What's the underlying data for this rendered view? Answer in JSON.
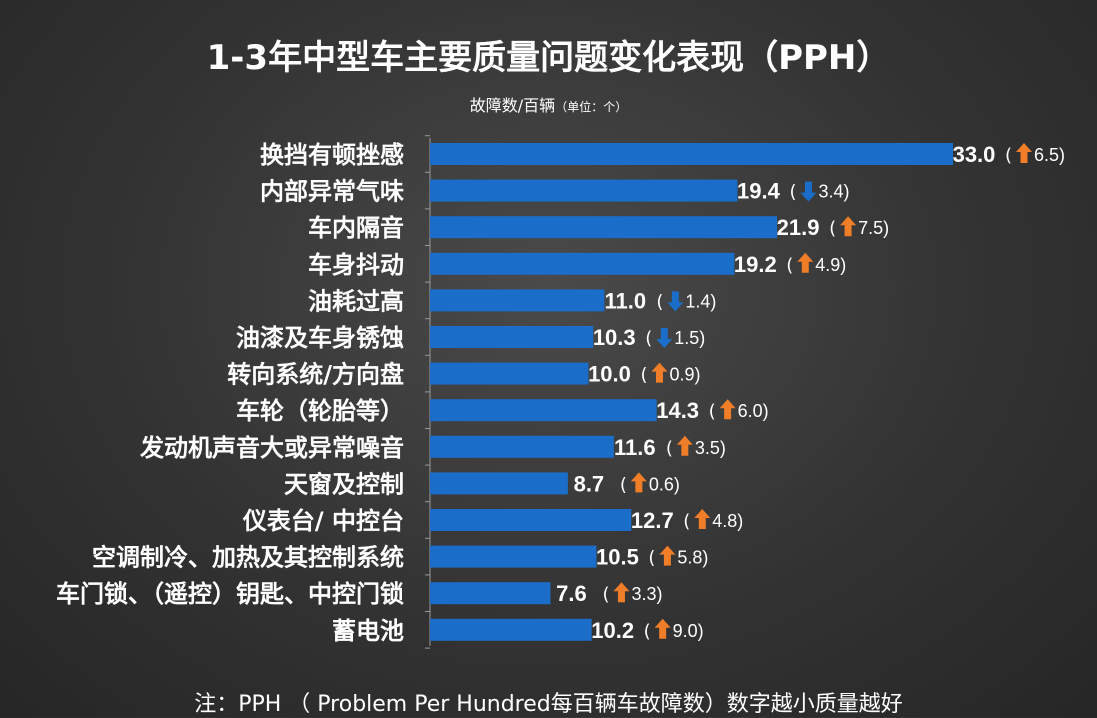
{
  "header": {
    "title": "1-3年中型车主要质量问题变化表现（PPH）",
    "subtitle": "故障数/百辆",
    "unit": "（单位：个）"
  },
  "footnote": "注：PPH （ Problem Per Hundred每百辆车故障数）数字越小质量越好",
  "colors": {
    "bar": "#1a6ec9",
    "up": "#f07d28",
    "down": "#1a6ec9"
  },
  "icons": {
    "up": "arrow-up-icon",
    "down": "arrow-down-icon"
  },
  "chart_data": {
    "type": "bar",
    "orientation": "horizontal",
    "categories": [
      "换挡有顿挫感",
      "内部异常气味",
      "车内隔音",
      "车身抖动",
      "油耗过高",
      "油漆及车身锈蚀",
      "转向系统/方向盘",
      "车轮（轮胎等）",
      "发动机声音大或异常噪音",
      "天窗及控制",
      "仪表台/ 中控台",
      "空调制冷、加热及其控制系统",
      "车门锁、（遥控）钥匙、中控门锁",
      "蓄电池"
    ],
    "values": [
      33.0,
      19.4,
      21.9,
      19.2,
      11.0,
      10.3,
      10.0,
      14.3,
      11.6,
      8.7,
      12.7,
      10.5,
      7.6,
      10.2
    ],
    "value_labels": [
      "33.0",
      "19.4",
      "21.9",
      "19.2",
      "11.0",
      "10.3",
      "10.0",
      "14.3",
      "11.6",
      "8.7",
      "12.7",
      "10.5",
      "7.6",
      "10.2"
    ],
    "changes": [
      {
        "direction": "up",
        "label": "6.5"
      },
      {
        "direction": "down",
        "label": "3.4"
      },
      {
        "direction": "up",
        "label": "7.5"
      },
      {
        "direction": "up",
        "label": "4.9"
      },
      {
        "direction": "down",
        "label": "1.4"
      },
      {
        "direction": "down",
        "label": "1.5"
      },
      {
        "direction": "up",
        "label": "0.9"
      },
      {
        "direction": "up",
        "label": "6.0"
      },
      {
        "direction": "up",
        "label": "3.5"
      },
      {
        "direction": "up",
        "label": "0.6"
      },
      {
        "direction": "up",
        "label": "4.8"
      },
      {
        "direction": "up",
        "label": "5.8"
      },
      {
        "direction": "up",
        "label": "3.3"
      },
      {
        "direction": "up",
        "label": "9.0"
      }
    ],
    "xlim": [
      0,
      33.0
    ],
    "grid": false,
    "legend": "none"
  }
}
